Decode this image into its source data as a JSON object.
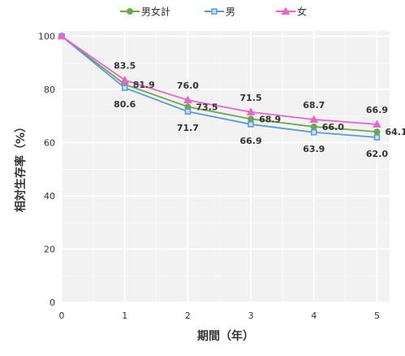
{
  "chart_data": {
    "type": "line",
    "x": [
      0,
      1,
      2,
      3,
      4,
      5
    ],
    "xlabel": "期間（年）",
    "ylabel": "相対生存率（%）",
    "xlim": [
      0,
      5.2
    ],
    "ylim": [
      0,
      102
    ],
    "xticks": [
      "0",
      "1",
      "2",
      "3",
      "4",
      "5"
    ],
    "yticks": [
      "0",
      "20",
      "40",
      "60",
      "80",
      "100"
    ],
    "grid": true,
    "legend_position": "top",
    "series": [
      {
        "name": "男女計",
        "color": "#6aa84f",
        "marker": "circle",
        "values": [
          100,
          81.9,
          73.5,
          68.9,
          66.0,
          64.1
        ],
        "labels": [
          "",
          "81.9",
          "73.5",
          "68.9",
          "66.0",
          "64.1"
        ]
      },
      {
        "name": "男",
        "color": "#5b9bd5",
        "marker": "square",
        "values": [
          100,
          80.6,
          71.7,
          66.9,
          63.9,
          62.0
        ],
        "labels": [
          "",
          "80.6",
          "71.7",
          "66.9",
          "63.9",
          "62.0"
        ]
      },
      {
        "name": "女",
        "color": "#f062c8",
        "marker": "triangle",
        "values": [
          100,
          83.5,
          76.0,
          71.5,
          68.7,
          66.9
        ],
        "labels": [
          "",
          "83.5",
          "76.0",
          "71.5",
          "68.7",
          "66.9"
        ]
      }
    ]
  }
}
